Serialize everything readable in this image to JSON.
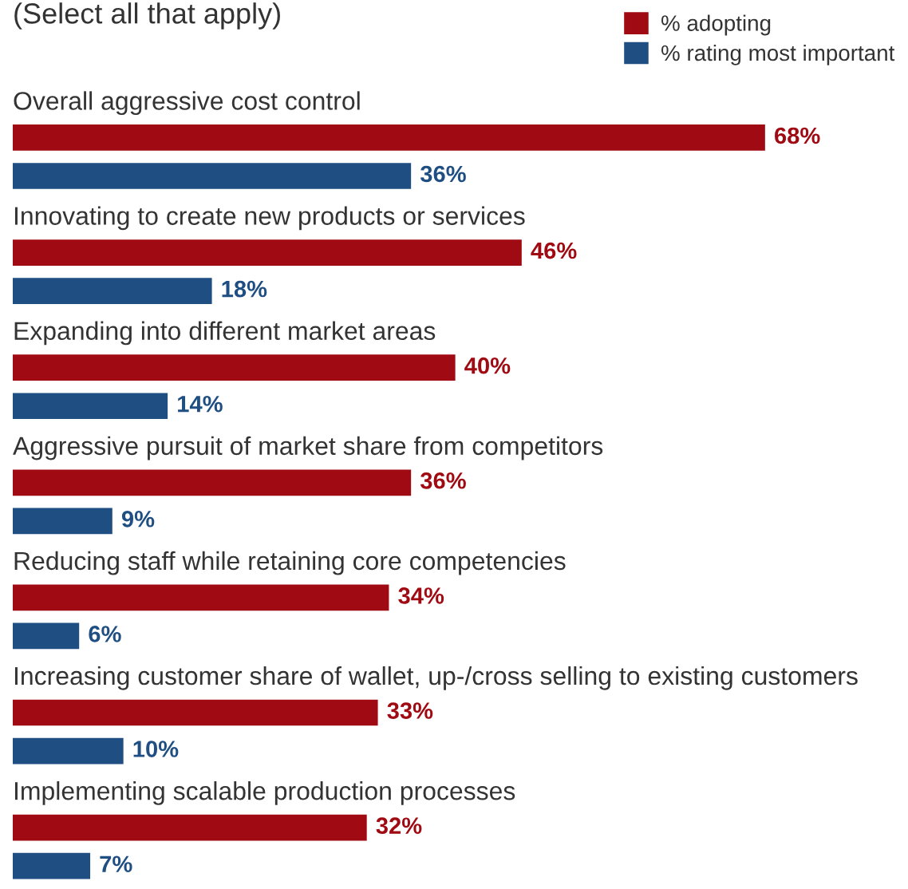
{
  "chart_data": {
    "type": "bar",
    "orientation": "horizontal",
    "subtitle": "(Select all that apply)",
    "legend": "top right",
    "categories": [
      "Overall aggressive cost control",
      "Innovating to create new products or services",
      "Expanding into different market areas",
      "Aggressive pursuit of market share from competitors",
      "Reducing staff while retaining core competencies",
      "Increasing customer share of wallet, up-/cross selling to existing customers",
      "Implementing scalable production processes"
    ],
    "series": [
      {
        "name": "% adopting",
        "color": "#a00a12",
        "values": [
          68,
          46,
          40,
          36,
          34,
          33,
          32
        ],
        "value_labels": [
          "68%",
          "46%",
          "40%",
          "36%",
          "34%",
          "33%",
          "32%"
        ]
      },
      {
        "name": "% rating most important",
        "color": "#1f4e83",
        "values": [
          36,
          18,
          14,
          9,
          6,
          10,
          7
        ],
        "value_labels": [
          "36%",
          "18%",
          "14%",
          "9%",
          "6%",
          "10%",
          "7%"
        ]
      }
    ]
  }
}
